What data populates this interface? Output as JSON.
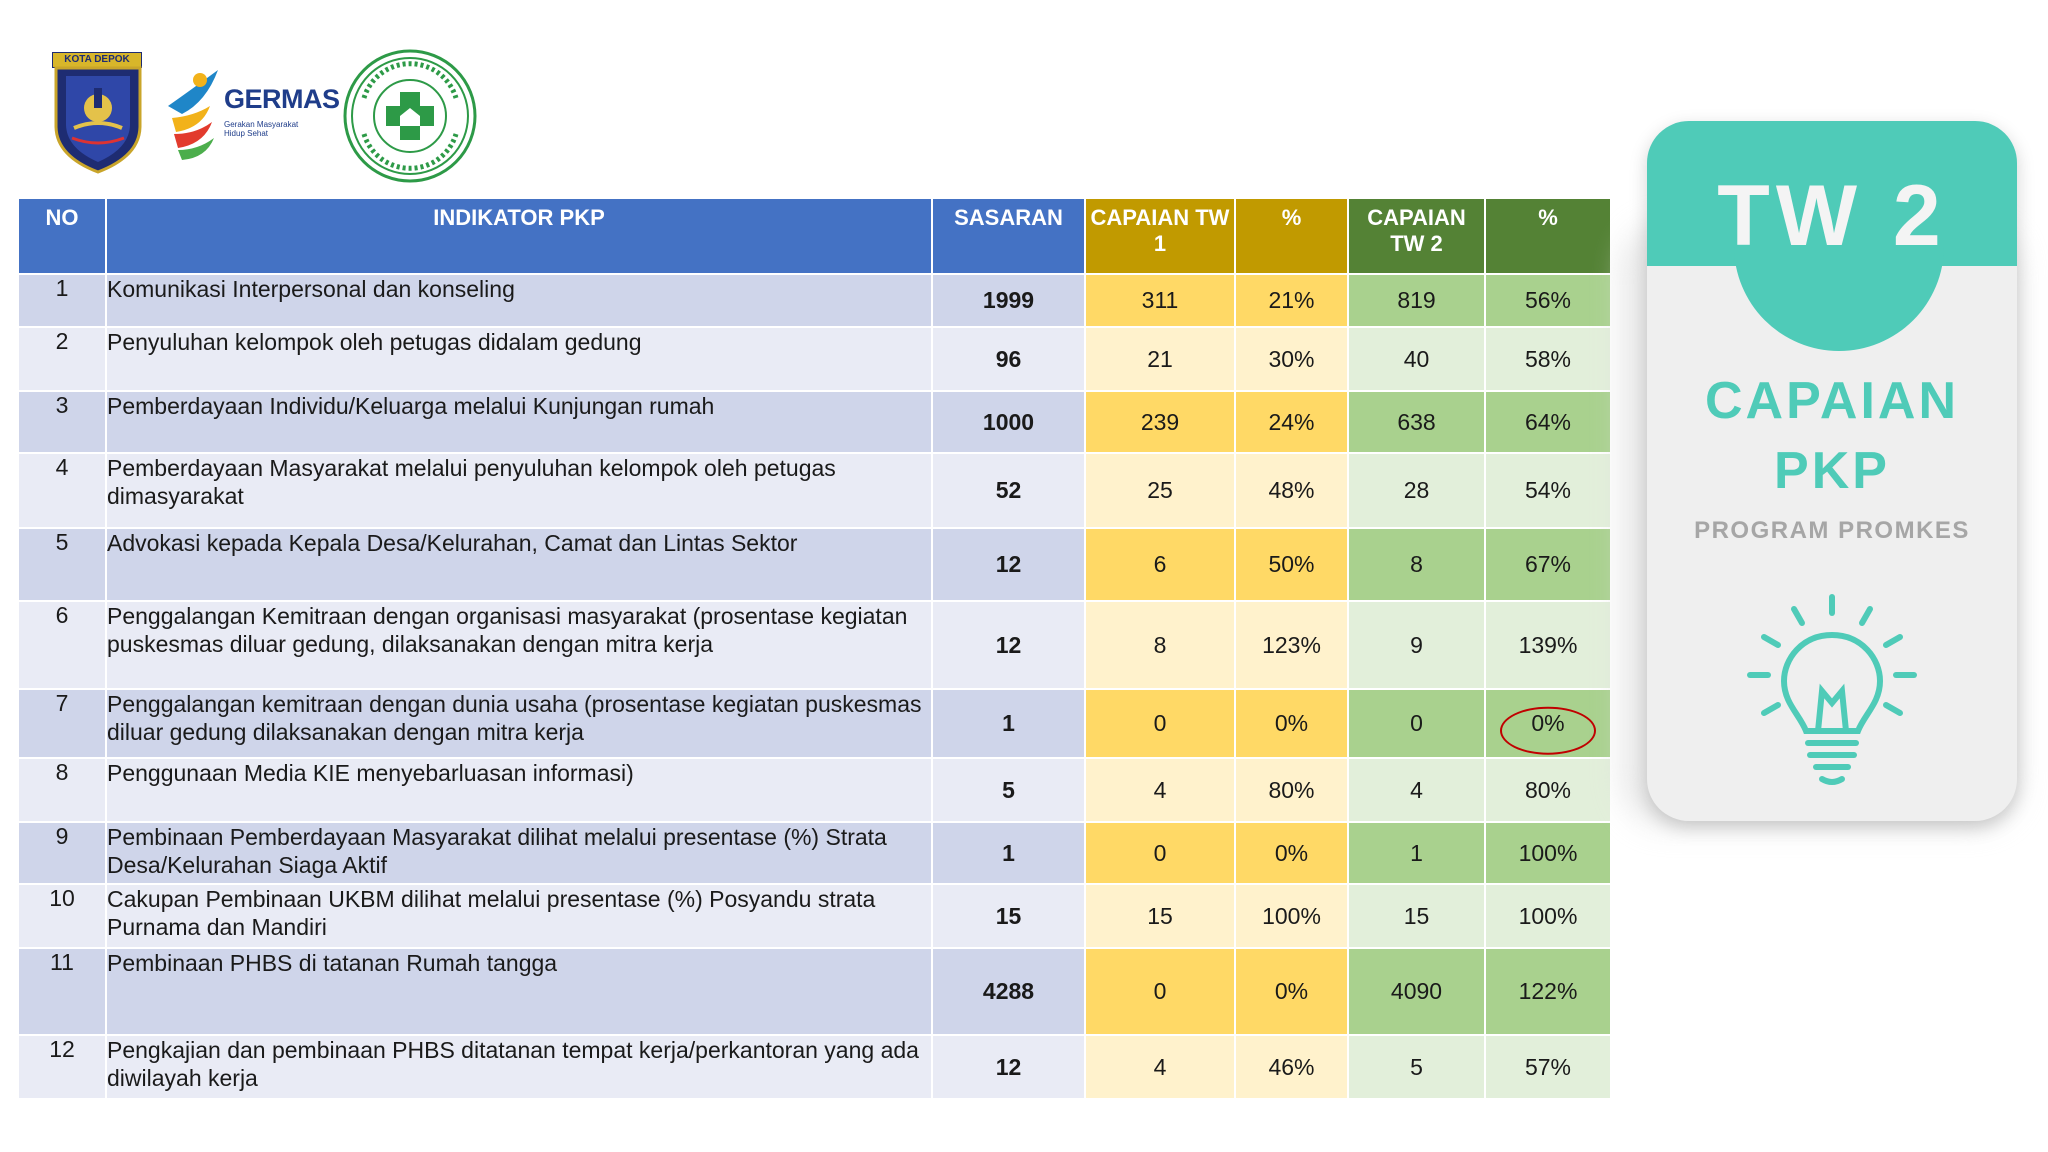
{
  "logos": {
    "depok_label": "KOTA DEPOK",
    "germas_word": "GERMAS",
    "germas_tagline": "Gerakan Masyarakat Hidup Sehat"
  },
  "table": {
    "headers": {
      "no": "NO",
      "indikator": "INDIKATOR PKP",
      "sasaran": "SASARAN",
      "capaian_tw1": "CAPAIAN TW 1",
      "pct1": "%",
      "capaian_tw2": "CAPAIAN TW 2",
      "pct2": "%"
    },
    "rows": [
      {
        "no": "1",
        "indikator": "Komunikasi Interpersonal dan konseling",
        "sasaran": "1999",
        "tw1": "311",
        "pct1": "21%",
        "tw2": "819",
        "pct2": "56%"
      },
      {
        "no": "2",
        "indikator": "Penyuluhan kelompok oleh petugas didalam gedung",
        "sasaran": "96",
        "tw1": "21",
        "pct1": "30%",
        "tw2": "40",
        "pct2": "58%"
      },
      {
        "no": "3",
        "indikator": "Pemberdayaan Individu/Keluarga melalui Kunjungan rumah",
        "sasaran": "1000",
        "tw1": "239",
        "pct1": "24%",
        "tw2": "638",
        "pct2": "64%"
      },
      {
        "no": "4",
        "indikator": "Pemberdayaan Masyarakat melalui penyuluhan kelompok oleh petugas dimasyarakat",
        "sasaran": "52",
        "tw1": "25",
        "pct1": "48%",
        "tw2": "28",
        "pct2": "54%"
      },
      {
        "no": "5",
        "indikator": "Advokasi  kepada Kepala Desa/Kelurahan, Camat dan Lintas Sektor",
        "sasaran": "12",
        "tw1": "6",
        "pct1": "50%",
        "tw2": "8",
        "pct2": "67%"
      },
      {
        "no": "6",
        "indikator": "Penggalangan Kemitraan dengan organisasi masyarakat (prosentase kegiatan puskesmas diluar gedung, dilaksanakan dengan mitra kerja",
        "sasaran": "12",
        "tw1": "8",
        "pct1": "123%",
        "tw2": "9",
        "pct2": "139%"
      },
      {
        "no": "7",
        "indikator": "Penggalangan kemitraan dengan dunia usaha (prosentase kegiatan puskesmas diluar gedung dilaksanakan dengan mitra kerja",
        "sasaran": "1",
        "tw1": "0",
        "pct1": "0%",
        "tw2": "0",
        "pct2": "0%"
      },
      {
        "no": "8",
        "indikator": "Penggunaan Media KIE menyebarluasan informasi)",
        "sasaran": "5",
        "tw1": "4",
        "pct1": "80%",
        "tw2": "4",
        "pct2": "80%"
      },
      {
        "no": "9",
        "indikator": "Pembinaan Pemberdayaan Masyarakat dilihat melalui presentase (%) Strata Desa/Kelurahan Siaga Aktif",
        "sasaran": "1",
        "tw1": "0",
        "pct1": "0%",
        "tw2": "1",
        "pct2": "100%"
      },
      {
        "no": "10",
        "indikator": "Cakupan Pembinaan UKBM dilihat melalui presentase (%) Posyandu strata Purnama dan Mandiri",
        "sasaran": "15",
        "tw1": "15",
        "pct1": "100%",
        "tw2": "15",
        "pct2": "100%"
      },
      {
        "no": "11",
        "indikator": "Pembinaan PHBS di tatanan Rumah tangga",
        "sasaran": "4288",
        "tw1": "0",
        "pct1": "0%",
        "tw2": "4090",
        "pct2": "122%"
      },
      {
        "no": "12",
        "indikator": "Pengkajian dan pembinaan PHBS ditatanan tempat kerja/perkantoran yang ada diwilayah kerja",
        "sasaran": "12",
        "tw1": "4",
        "pct1": "46%",
        "tw2": "5",
        "pct2": "57%"
      }
    ]
  },
  "card": {
    "tw_label": "TW 2",
    "title_line1": "CAPAIAN",
    "title_line2": "PKP",
    "subtitle": "PROGRAM PROMKES"
  },
  "colors": {
    "header_blue": "#4472c4",
    "header_gold": "#c19a00",
    "header_green": "#548235",
    "card_teal": "#4fcbb8",
    "highlight_ring": "#c00000"
  },
  "icons": [
    "kota-depok-emblem-icon",
    "germas-logo-icon",
    "puskesmas-emblem-icon",
    "lightbulb-icon"
  ]
}
